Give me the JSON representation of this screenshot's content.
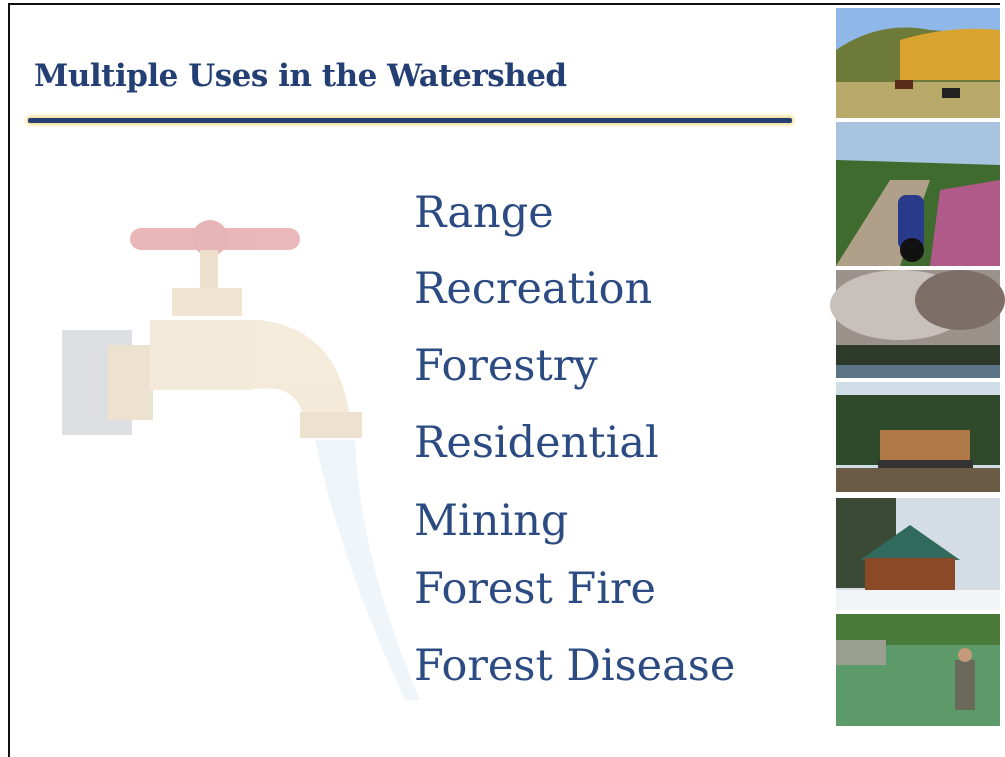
{
  "title": "Multiple Uses in the Watershed",
  "items": [
    "Range",
    "Recreation",
    "Forestry",
    "Residential",
    "Mining",
    "Forest Fire",
    "Forest Disease"
  ]
}
